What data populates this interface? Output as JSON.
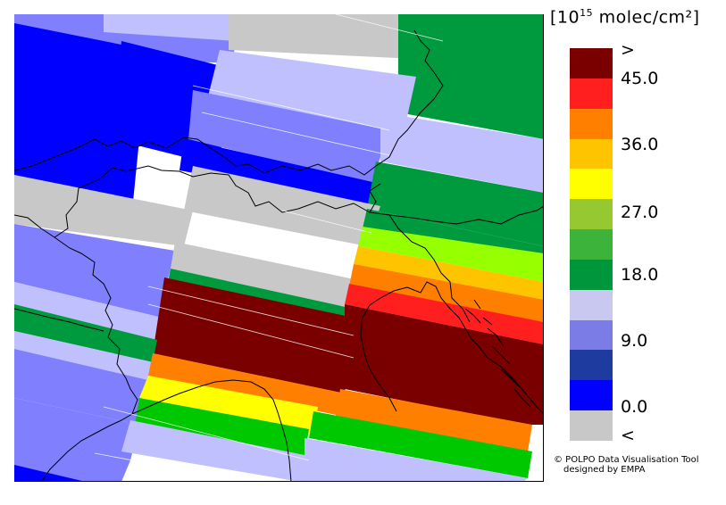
{
  "legend": {
    "bracket_open": "[",
    "base": "10",
    "exponent": "15",
    "unit": " molec/cm²",
    "bracket_close": "]",
    "bins": [
      {
        "color": "#7a0000",
        "level": "above"
      },
      {
        "color": "#ff1f1f",
        "level": "45.0"
      },
      {
        "color": "#ff7f00",
        "level": "40.5"
      },
      {
        "color": "#ffc400",
        "level": "36.0"
      },
      {
        "color": "#ffff00",
        "level": "31.5"
      },
      {
        "color": "#96c832",
        "level": "27.0"
      },
      {
        "color": "#3cb43c",
        "level": "22.5"
      },
      {
        "color": "#00963c",
        "level": "18.0"
      },
      {
        "color": "#c8c8f0",
        "level": "13.5"
      },
      {
        "color": "#7c7ce6",
        "level": "9.0"
      },
      {
        "color": "#1e3ca0",
        "level": "4.5"
      },
      {
        "color": "#0000ff",
        "level": "0.0"
      },
      {
        "color": "#c8c8c8",
        "level": "below"
      }
    ],
    "labels": [
      ">",
      "45.0",
      "36.0",
      "27.0",
      "18.0",
      "9.0",
      "0.0",
      "<"
    ]
  },
  "map_colors": {
    "dark_red": "#7a0000",
    "red": "#ff1f1f",
    "orange": "#ff7f00",
    "amber": "#ffc400",
    "yellow": "#ffff00",
    "lime": "#96ff00",
    "green": "#009a3e",
    "bright_green": "#00c800",
    "light_blue": "#c0c0ff",
    "medium_blue": "#8080ff",
    "blue": "#0000ff",
    "grey": "#c8c8c8"
  },
  "credit": {
    "line1": "© POLPO Data Visualisation Tool",
    "line2": "designed by EMPA"
  }
}
